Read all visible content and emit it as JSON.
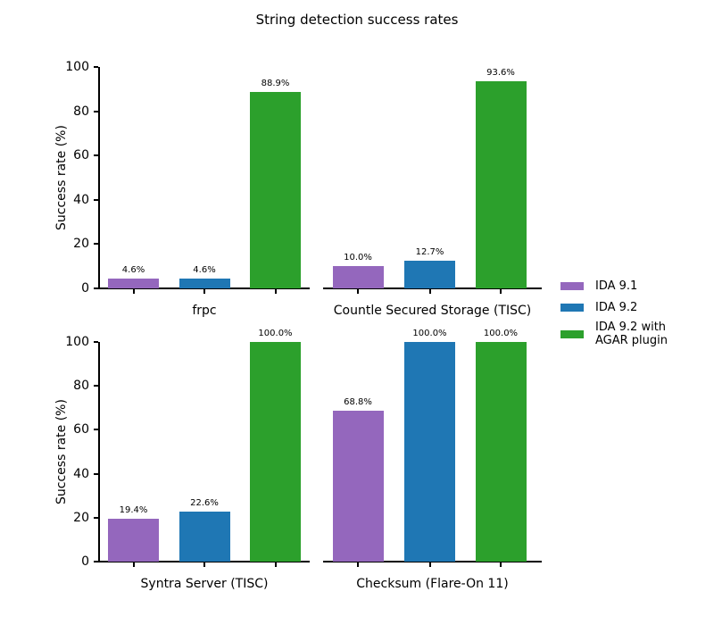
{
  "chart_data": {
    "type": "bar",
    "title": "String detection success rates",
    "ylabel": "Success rate (%)",
    "ylim": [
      0,
      100
    ],
    "yticks": [
      0,
      20,
      40,
      60,
      80,
      100
    ],
    "ytick_labels": [
      "0",
      "20",
      "40",
      "60",
      "80",
      "100"
    ],
    "grid": false,
    "legend_position": "center-right",
    "background": "#ffffff",
    "axis_color": "#000000",
    "series": [
      {
        "name": "IDA 9.1",
        "color": "#9467bd"
      },
      {
        "name": "IDA 9.2",
        "color": "#1f77b4"
      },
      {
        "name": "IDA 9.2 with AGAR plugin",
        "color": "#2ca02c"
      }
    ],
    "subplots": [
      {
        "category": "frpc",
        "values": [
          4.6,
          4.6,
          88.9
        ],
        "value_labels": [
          "4.6%",
          "4.6%",
          "88.9%"
        ]
      },
      {
        "category": "Countle Secured Storage (TISC)",
        "values": [
          10.0,
          12.7,
          93.6
        ],
        "value_labels": [
          "10.0%",
          "12.7%",
          "93.6%"
        ]
      },
      {
        "category": "Syntra Server (TISC)",
        "values": [
          19.4,
          22.6,
          100.0
        ],
        "value_labels": [
          "19.4%",
          "22.6%",
          "100.0%"
        ]
      },
      {
        "category": "Checksum (Flare-On 11)",
        "values": [
          68.8,
          100.0,
          100.0
        ],
        "value_labels": [
          "68.8%",
          "100.0%",
          "100.0%"
        ]
      }
    ]
  }
}
